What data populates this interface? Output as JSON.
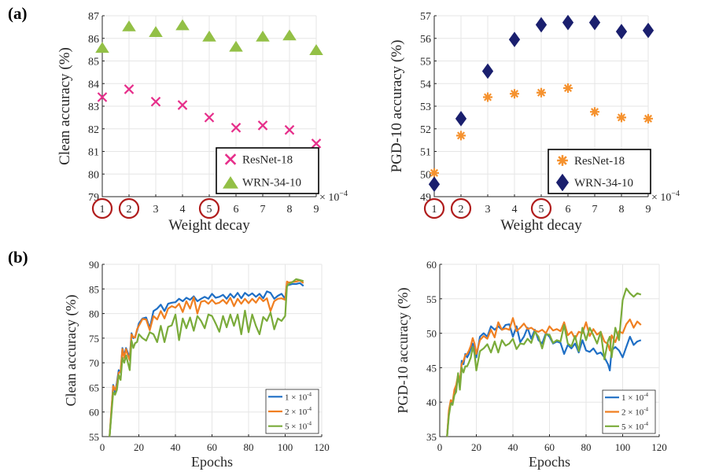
{
  "panels": {
    "a_label": "(a)",
    "b_label": "(b)"
  },
  "chart_data": [
    {
      "id": "clean-vs-wd",
      "type": "scatter",
      "title": "",
      "xlabel": "Weight decay",
      "ylabel": "Clean accuracy (%)",
      "x_multiplier_label": "× 10",
      "x_multiplier_exp": "−4",
      "x": [
        1,
        2,
        3,
        4,
        5,
        6,
        7,
        8,
        9
      ],
      "xlim": [
        1,
        9
      ],
      "ylim": [
        79,
        87
      ],
      "xticks": [
        "1",
        "2",
        "3",
        "4",
        "5",
        "6",
        "7",
        "8",
        "9"
      ],
      "yticks": [
        "79",
        "80",
        "81",
        "82",
        "83",
        "84",
        "85",
        "86",
        "87"
      ],
      "highlighted_xticks": [
        1,
        2,
        5
      ],
      "highlight_color": "#b01c1c",
      "grid": true,
      "legend_position": "bottom-right",
      "series": [
        {
          "name": "ResNet-18",
          "marker": "x",
          "color": "#e62e8a",
          "values": [
            83.4,
            83.75,
            83.2,
            83.05,
            82.5,
            82.05,
            82.15,
            81.95,
            81.35
          ]
        },
        {
          "name": "WRN-34-10",
          "marker": "triangle",
          "color": "#93c046",
          "values": [
            85.55,
            86.5,
            86.25,
            86.55,
            86.05,
            85.6,
            86.05,
            86.1,
            85.45
          ]
        }
      ]
    },
    {
      "id": "pgd-vs-wd",
      "type": "scatter",
      "title": "",
      "xlabel": "Weight decay",
      "ylabel": "PGD-10 accuracy (%)",
      "x_multiplier_label": "× 10",
      "x_multiplier_exp": "−4",
      "x": [
        1,
        2,
        3,
        4,
        5,
        6,
        7,
        8,
        9
      ],
      "xlim": [
        1,
        9
      ],
      "ylim": [
        49,
        57
      ],
      "xticks": [
        "1",
        "2",
        "3",
        "4",
        "5",
        "6",
        "7",
        "8",
        "9"
      ],
      "yticks": [
        "49",
        "50",
        "51",
        "52",
        "53",
        "54",
        "55",
        "56",
        "57"
      ],
      "highlighted_xticks": [
        1,
        2,
        5
      ],
      "highlight_color": "#b01c1c",
      "grid": true,
      "legend_position": "bottom-right",
      "series": [
        {
          "name": "ResNet-18",
          "marker": "asterisk",
          "color": "#f5922f",
          "values": [
            50.05,
            51.7,
            53.4,
            53.55,
            53.6,
            53.8,
            52.75,
            52.5,
            52.45
          ]
        },
        {
          "name": "WRN-34-10",
          "marker": "diamond",
          "color": "#1a1f6e",
          "values": [
            49.55,
            52.45,
            54.55,
            55.95,
            56.6,
            56.7,
            56.7,
            56.3,
            56.35
          ]
        }
      ]
    },
    {
      "id": "clean-vs-epochs",
      "type": "line",
      "title": "",
      "xlabel": "Epochs",
      "ylabel": "Clean accuracy (%)",
      "xlim": [
        0,
        120
      ],
      "ylim": [
        55,
        90
      ],
      "xticks": [
        "0",
        "20",
        "40",
        "60",
        "80",
        "100",
        "120"
      ],
      "yticks": [
        "55",
        "60",
        "65",
        "70",
        "75",
        "80",
        "85",
        "90"
      ],
      "grid": true,
      "legend_position": "bottom-right",
      "x": [
        4,
        5,
        6,
        7,
        8,
        9,
        10,
        11,
        12,
        13,
        14,
        15,
        16,
        17,
        18,
        19,
        20,
        22,
        24,
        26,
        28,
        30,
        32,
        34,
        36,
        38,
        40,
        42,
        44,
        46,
        48,
        50,
        52,
        54,
        56,
        58,
        60,
        62,
        64,
        66,
        68,
        70,
        72,
        74,
        76,
        78,
        80,
        82,
        84,
        86,
        88,
        90,
        92,
        94,
        96,
        98,
        100,
        101,
        102,
        104,
        106,
        108,
        110
      ],
      "series": [
        {
          "name": "1 × 10",
          "exp": "-4",
          "color": "#1f6fc5",
          "values": [
            55,
            60,
            65.5,
            64,
            66,
            68.5,
            68,
            73,
            71.5,
            73,
            72,
            71,
            76,
            75,
            75.3,
            76.5,
            78,
            79,
            79.2,
            77,
            80.5,
            81,
            81.8,
            80.5,
            82,
            82.2,
            82.3,
            83,
            82.5,
            83.2,
            82.8,
            83.5,
            82.5,
            83,
            83.4,
            83,
            84,
            83.2,
            83.4,
            83.8,
            83,
            84,
            83.2,
            84.2,
            83.1,
            84.2,
            83.6,
            84.1,
            83.4,
            84,
            83.1,
            84.5,
            84.2,
            83,
            83.6,
            84,
            83,
            86,
            85.8,
            86,
            86,
            86.2,
            85.6
          ]
        },
        {
          "name": "2 × 10",
          "exp": "-4",
          "color": "#f07f21",
          "values": [
            55,
            60.5,
            65.3,
            64.5,
            65.5,
            68,
            68.2,
            72.8,
            71,
            72.8,
            71.5,
            70.5,
            75.8,
            75.2,
            75.1,
            76.8,
            77.5,
            78.9,
            78.8,
            76.6,
            79.5,
            78.8,
            80.5,
            79,
            81,
            81.5,
            81.2,
            82,
            80.3,
            82.5,
            81,
            83.3,
            80,
            82.4,
            82.6,
            82,
            82.8,
            82,
            82.2,
            82.8,
            82,
            83.2,
            81.5,
            83,
            82,
            83,
            82.1,
            83,
            82.2,
            83.3,
            82.5,
            83.1,
            80.5,
            82.5,
            83,
            83.1,
            82.8,
            86.5,
            86.3,
            86.4,
            86.5,
            86.7,
            86.2
          ]
        },
        {
          "name": "5 × 10",
          "exp": "-4",
          "color": "#7aab3a",
          "values": [
            55,
            59.5,
            64,
            63.5,
            64.5,
            67.5,
            66.5,
            71,
            70,
            71.5,
            70,
            68.5,
            74.5,
            73,
            74,
            74.2,
            75.8,
            75,
            74.5,
            76.2,
            75.8,
            74.2,
            77.5,
            74.2,
            77.3,
            77.6,
            79.8,
            74.6,
            79,
            77,
            79.2,
            76.5,
            79.5,
            78.5,
            77,
            79.8,
            79.5,
            78,
            76.3,
            79.5,
            77.2,
            79.8,
            77.5,
            79.8,
            75.8,
            80.6,
            76.2,
            79.8,
            77.5,
            75.8,
            79.3,
            78.5,
            80.2,
            76.8,
            79,
            78.5,
            79.5,
            85.5,
            86,
            86.4,
            87,
            86.8,
            86.6
          ]
        }
      ]
    },
    {
      "id": "pgd-vs-epochs",
      "type": "line",
      "title": "",
      "xlabel": "Epochs",
      "ylabel": "PGD-10 accuracy (%)",
      "xlim": [
        0,
        120
      ],
      "ylim": [
        35,
        60
      ],
      "xticks": [
        "0",
        "20",
        "40",
        "60",
        "80",
        "100",
        "120"
      ],
      "yticks": [
        "35",
        "40",
        "45",
        "50",
        "55",
        "60"
      ],
      "grid": true,
      "legend_position": "bottom-right",
      "x": [
        4,
        5,
        6,
        7,
        8,
        9,
        10,
        11,
        12,
        13,
        14,
        15,
        16,
        17,
        18,
        19,
        20,
        22,
        24,
        26,
        28,
        30,
        32,
        34,
        36,
        38,
        40,
        42,
        44,
        46,
        48,
        50,
        52,
        54,
        56,
        58,
        60,
        62,
        64,
        66,
        68,
        70,
        72,
        74,
        76,
        78,
        80,
        82,
        84,
        86,
        88,
        90,
        92,
        93,
        94,
        96,
        98,
        100,
        102,
        104,
        106,
        108,
        110
      ],
      "series": [
        {
          "name": "1 × 10",
          "exp": "-4",
          "color": "#1f6fc5",
          "values": [
            35,
            38.5,
            40,
            39.8,
            41.5,
            42,
            43.8,
            42.5,
            46,
            45.5,
            47,
            46.5,
            47,
            47.8,
            48.5,
            48,
            46.5,
            49.5,
            50,
            49.5,
            51,
            50.5,
            51,
            50.5,
            51.2,
            51.3,
            49.5,
            51,
            48.7,
            49.5,
            50.8,
            49.2,
            50.5,
            49,
            48.5,
            50,
            49.5,
            48.5,
            48.8,
            48.6,
            47,
            48.3,
            47.8,
            48.5,
            47.2,
            49,
            47.5,
            47.3,
            47.8,
            47,
            47.2,
            46.5,
            45.5,
            44.6,
            47.5,
            48,
            47.5,
            46.5,
            48,
            49.5,
            48.3,
            48.8,
            49
          ]
        },
        {
          "name": "2 × 10",
          "exp": "-4",
          "color": "#f07f21",
          "values": [
            35,
            38.8,
            40.3,
            40,
            41.8,
            42.5,
            44,
            43,
            45.5,
            46,
            46.8,
            47,
            47.5,
            48.2,
            49.3,
            48.5,
            47,
            49,
            49.6,
            49.2,
            50.5,
            49.4,
            51.6,
            50.5,
            50.7,
            50.5,
            52.2,
            50.3,
            50.8,
            51.4,
            50.6,
            50.8,
            50.4,
            50.2,
            50.5,
            50,
            51,
            50.4,
            50.6,
            50.3,
            51.6,
            49.7,
            50.2,
            49.2,
            50.2,
            50,
            51.6,
            49.6,
            50.6,
            49.8,
            50.2,
            48.8,
            48.4,
            47.5,
            49.7,
            48.7,
            50.3,
            50,
            51.3,
            52,
            50.8,
            51.7,
            51.2
          ]
        },
        {
          "name": "5 × 10",
          "exp": "-4",
          "color": "#7aab3a",
          "values": [
            35,
            38,
            39.8,
            39.6,
            41,
            41.5,
            44.2,
            41.8,
            45,
            44.3,
            45.2,
            45.2,
            45.8,
            46.5,
            48,
            47,
            44.6,
            47.4,
            47.8,
            48.4,
            47.2,
            48.8,
            47.2,
            49,
            48.2,
            48.5,
            49.2,
            47.7,
            48.5,
            48.4,
            49.2,
            48.6,
            50.2,
            49.5,
            47.8,
            49.8,
            49.8,
            48.6,
            49,
            48.8,
            51.2,
            48.5,
            48.1,
            49.6,
            47.4,
            50.8,
            49,
            50.8,
            49.7,
            48.5,
            50.2,
            46.2,
            48.9,
            49.5,
            46.5,
            50.8,
            49,
            54.8,
            56.5,
            55.8,
            55.3,
            55.8,
            55.6
          ]
        }
      ]
    }
  ]
}
